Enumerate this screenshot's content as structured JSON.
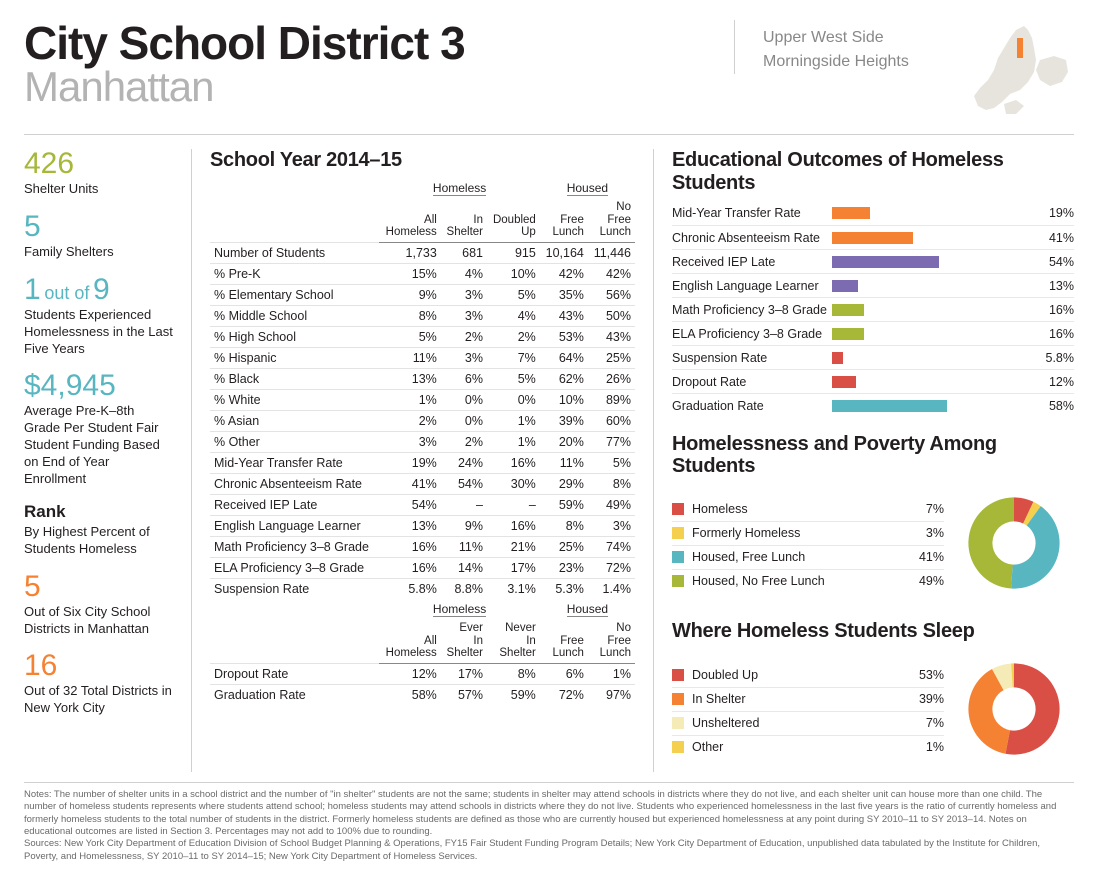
{
  "colors": {
    "olive": "#a7b738",
    "teal": "#58b6c0",
    "orange": "#f58233",
    "purple": "#7c6bb0",
    "red": "#d94f46",
    "yellow": "#f5d04e",
    "pale_yellow": "#f5ebb6",
    "text": "#231f20",
    "muted": "#888888",
    "rule": "#d0d0d0"
  },
  "header": {
    "title": "City School District 3",
    "subtitle": "Manhattan",
    "neighborhoods": [
      "Upper West Side",
      "Morningside Heights"
    ]
  },
  "left": {
    "shelter_units": {
      "value": "426",
      "label": "Shelter Units",
      "color": "olive"
    },
    "family_shelters": {
      "value": "5",
      "label": "Family Shelters",
      "color": "teal"
    },
    "ratio": {
      "num": "1",
      "word": "out of",
      "den": "9",
      "label": "Students Experienced Homelessness in the Last Five Years",
      "color": "teal"
    },
    "funding": {
      "value": "$4,945",
      "label": "Average Pre-K–8th Grade Per Student Fair Student Funding Based on End of Year Enrollment",
      "color": "teal"
    },
    "rank": {
      "title": "Rank",
      "subtitle": "By Highest Percent of Students Homeless",
      "r1_value": "5",
      "r1_label": "Out of Six City School Districts in Manhattan",
      "r2_value": "16",
      "r2_label": "Out of 32 Total Districts in New York City",
      "color": "orange"
    }
  },
  "table": {
    "title": "School Year 2014–15",
    "group_labels": {
      "homeless": "Homeless",
      "housed": "Housed"
    },
    "columns_top": [
      "",
      "All Homeless",
      "In Shelter",
      "Doubled Up",
      "Free Lunch",
      "No Free Lunch"
    ],
    "rows_top": [
      {
        "label": "Number of Students",
        "cells": [
          "1,733",
          "681",
          "915",
          "10,164",
          "11,446"
        ]
      },
      {
        "label": "% Pre-K",
        "cells": [
          "15%",
          "4%",
          "10%",
          "42%",
          "42%"
        ]
      },
      {
        "label": "% Elementary School",
        "cells": [
          "9%",
          "3%",
          "5%",
          "35%",
          "56%"
        ]
      },
      {
        "label": "% Middle School",
        "cells": [
          "8%",
          "3%",
          "4%",
          "43%",
          "50%"
        ]
      },
      {
        "label": "% High School",
        "cells": [
          "5%",
          "2%",
          "2%",
          "53%",
          "43%"
        ]
      },
      {
        "label": "% Hispanic",
        "cells": [
          "11%",
          "3%",
          "7%",
          "64%",
          "25%"
        ]
      },
      {
        "label": "% Black",
        "cells": [
          "13%",
          "6%",
          "5%",
          "62%",
          "26%"
        ]
      },
      {
        "label": "% White",
        "cells": [
          "1%",
          "0%",
          "0%",
          "10%",
          "89%"
        ]
      },
      {
        "label": "% Asian",
        "cells": [
          "2%",
          "0%",
          "1%",
          "39%",
          "60%"
        ]
      },
      {
        "label": "% Other",
        "cells": [
          "3%",
          "2%",
          "1%",
          "20%",
          "77%"
        ]
      },
      {
        "label": "Mid-Year Transfer Rate",
        "cells": [
          "19%",
          "24%",
          "16%",
          "11%",
          "5%"
        ]
      },
      {
        "label": "Chronic Absenteeism Rate",
        "cells": [
          "41%",
          "54%",
          "30%",
          "29%",
          "8%"
        ]
      },
      {
        "label": "Received IEP Late",
        "cells": [
          "54%",
          "–",
          "–",
          "59%",
          "49%"
        ]
      },
      {
        "label": "English Language Learner",
        "cells": [
          "13%",
          "9%",
          "16%",
          "8%",
          "3%"
        ]
      },
      {
        "label": "Math Proficiency 3–8 Grade",
        "cells": [
          "16%",
          "11%",
          "21%",
          "25%",
          "74%"
        ]
      },
      {
        "label": "ELA Proficiency 3–8 Grade",
        "cells": [
          "16%",
          "14%",
          "17%",
          "23%",
          "72%"
        ]
      },
      {
        "label": "Suspension Rate",
        "cells": [
          "5.8%",
          "8.8%",
          "3.1%",
          "5.3%",
          "1.4%"
        ]
      }
    ],
    "columns_bottom": [
      "",
      "All Homeless",
      "Ever In Shelter",
      "Never In Shelter",
      "Free Lunch",
      "No Free Lunch"
    ],
    "rows_bottom": [
      {
        "label": "Dropout Rate",
        "cells": [
          "12%",
          "17%",
          "8%",
          "6%",
          "1%"
        ]
      },
      {
        "label": "Graduation Rate",
        "cells": [
          "58%",
          "57%",
          "59%",
          "72%",
          "97%"
        ]
      }
    ]
  },
  "outcomes": {
    "title": "Educational Outcomes of Homeless Students",
    "bar_max": 100,
    "items": [
      {
        "label": "Mid-Year Transfer Rate",
        "value": 19,
        "display": "19%",
        "color": "orange"
      },
      {
        "label": "Chronic Absenteeism Rate",
        "value": 41,
        "display": "41%",
        "color": "orange"
      },
      {
        "label": "Received IEP Late",
        "value": 54,
        "display": "54%",
        "color": "purple"
      },
      {
        "label": "English Language Learner",
        "value": 13,
        "display": "13%",
        "color": "purple"
      },
      {
        "label": "Math Proficiency 3–8 Grade",
        "value": 16,
        "display": "16%",
        "color": "olive"
      },
      {
        "label": "ELA Proficiency 3–8 Grade",
        "value": 16,
        "display": "16%",
        "color": "olive"
      },
      {
        "label": "Suspension Rate",
        "value": 5.8,
        "display": "5.8%",
        "color": "red"
      },
      {
        "label": "Dropout Rate",
        "value": 12,
        "display": "12%",
        "color": "red"
      },
      {
        "label": "Graduation Rate",
        "value": 58,
        "display": "58%",
        "color": "teal"
      }
    ]
  },
  "poverty": {
    "title": "Homelessness and Poverty Among Students",
    "items": [
      {
        "label": "Homeless",
        "value": 7,
        "display": "7%",
        "color": "red"
      },
      {
        "label": "Formerly Homeless",
        "value": 3,
        "display": "3%",
        "color": "yellow"
      },
      {
        "label": "Housed, Free Lunch",
        "value": 41,
        "display": "41%",
        "color": "teal"
      },
      {
        "label": "Housed, No Free Lunch",
        "value": 49,
        "display": "49%",
        "color": "olive"
      }
    ]
  },
  "sleep": {
    "title": "Where Homeless Students Sleep",
    "items": [
      {
        "label": "Doubled Up",
        "value": 53,
        "display": "53%",
        "color": "red"
      },
      {
        "label": "In Shelter",
        "value": 39,
        "display": "39%",
        "color": "orange"
      },
      {
        "label": "Unsheltered",
        "value": 7,
        "display": "7%",
        "color": "pale_yellow"
      },
      {
        "label": "Other",
        "value": 1,
        "display": "1%",
        "color": "yellow"
      }
    ]
  },
  "notes": {
    "body": "Notes: The number of shelter units in a school district and the number of \"in shelter\" students are not the same; students in shelter may attend schools in districts where they do not live, and each shelter unit can house more than one child. The number of homeless students represents where students attend school; homeless students may attend schools in districts where they do not live. Students who experienced homelessness in the last five years is the ratio of currently homeless and formerly homeless students to the total number of students in the district. Formerly homeless students are defined as those who are currently housed but experienced homelessness at any point during SY 2010–11 to SY 2013–14. Notes on educational outcomes are listed in Section 3. Percentages may not add to 100% due to rounding.",
    "sources": "Sources: New York City Department of Education Division of School Budget Planning & Operations, FY15 Fair Student Funding Program Details; New York City Department of Education, unpublished data tabulated by the Institute for Children, Poverty, and Homelessness, SY 2010–11 to SY 2014–15; New York City Department of Homeless Services."
  }
}
